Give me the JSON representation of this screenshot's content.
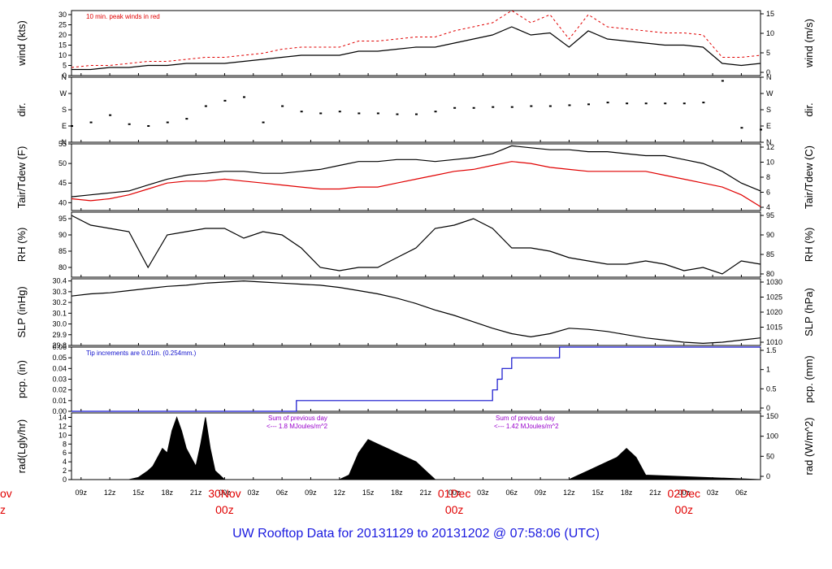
{
  "footer": {
    "prefix": "UW Rooftop Data for",
    "start": "20131129",
    "to_word": "to",
    "end": "20131202",
    "at_word": "@",
    "time": "07:58:06",
    "tz": "(UTC)"
  },
  "x_axis": {
    "hour_ticks": [
      "09z",
      "12z",
      "15z",
      "18z",
      "21z",
      "00z",
      "03z",
      "06z",
      "09z",
      "12z",
      "15z",
      "18z",
      "21z",
      "00z",
      "03z",
      "06z",
      "09z",
      "12z",
      "15z",
      "18z",
      "21z",
      "00z",
      "03z",
      "06z"
    ],
    "day_labels": [
      {
        "date": "30Nov",
        "time": "00z"
      },
      {
        "date": "01Dec",
        "time": "00z"
      },
      {
        "date": "02Dec",
        "time": "00z"
      }
    ],
    "left_partial": {
      "top": "ov",
      "bottom": "z"
    }
  },
  "colors": {
    "series_black": "#000000",
    "series_red": "#e00000",
    "precip": "#1010cc",
    "annotation_purple": "#9900cc",
    "annotation_blue": "#1010cc",
    "footer": "#1a1adf"
  },
  "chart_data": [
    {
      "type": "line",
      "ylabel": "wind (kts)",
      "ylabel_right": "wind (m/s)",
      "yticks": [
        "0",
        "5",
        "10",
        "15",
        "20",
        "25",
        "30"
      ],
      "yticks_right": [
        "0",
        "5",
        "10",
        "15"
      ],
      "ylim": [
        0,
        32
      ],
      "annotation": "10 min. peak winds in red",
      "series": [
        {
          "name": "wind",
          "color": "#000000",
          "x": [
            0,
            2,
            4,
            6,
            8,
            10,
            12,
            14,
            16,
            18,
            20,
            22,
            24,
            26,
            28,
            30,
            32,
            34,
            36,
            38,
            40,
            42,
            44,
            46,
            48,
            50,
            52,
            54,
            56,
            58,
            60,
            62,
            64,
            66,
            68,
            70,
            72
          ],
          "values": [
            3,
            3,
            4,
            4,
            5,
            5,
            6,
            6,
            6,
            7,
            8,
            9,
            10,
            10,
            10,
            12,
            12,
            13,
            14,
            14,
            16,
            18,
            20,
            24,
            20,
            21,
            14,
            22,
            18,
            17,
            16,
            15,
            15,
            14,
            6,
            5,
            6
          ]
        },
        {
          "name": "peak",
          "color": "#e00000",
          "x": [
            0,
            2,
            4,
            6,
            8,
            10,
            12,
            14,
            16,
            18,
            20,
            22,
            24,
            26,
            28,
            30,
            32,
            34,
            36,
            38,
            40,
            42,
            44,
            46,
            48,
            50,
            52,
            54,
            56,
            58,
            60,
            62,
            64,
            66,
            68,
            70,
            72
          ],
          "values": [
            4,
            5,
            5,
            6,
            7,
            7,
            8,
            9,
            9,
            10,
            11,
            13,
            14,
            14,
            14,
            17,
            17,
            18,
            19,
            19,
            22,
            24,
            26,
            32,
            26,
            30,
            18,
            30,
            24,
            23,
            22,
            21,
            21,
            20,
            9,
            9,
            10
          ]
        }
      ]
    },
    {
      "type": "scatter",
      "ylabel": "dir.",
      "ylabel_right": "dir.",
      "yticks": [
        "N",
        "E",
        "S",
        "W",
        "N"
      ],
      "yticks_right": [
        "N",
        "E",
        "S",
        "W",
        "N"
      ],
      "ylim": [
        0,
        360
      ],
      "series": [
        {
          "name": "dir",
          "color": "#000000",
          "x": [
            0,
            2,
            4,
            6,
            8,
            10,
            12,
            14,
            16,
            18,
            20,
            22,
            24,
            26,
            28,
            30,
            32,
            34,
            36,
            38,
            40,
            42,
            44,
            46,
            48,
            50,
            52,
            54,
            56,
            58,
            60,
            62,
            64,
            66,
            68,
            70,
            72
          ],
          "values": [
            90,
            110,
            150,
            100,
            90,
            110,
            130,
            200,
            230,
            250,
            110,
            200,
            170,
            160,
            170,
            160,
            160,
            155,
            155,
            170,
            190,
            190,
            195,
            195,
            200,
            200,
            205,
            210,
            220,
            215,
            215,
            215,
            215,
            220,
            340,
            80,
            70
          ]
        }
      ]
    },
    {
      "type": "line",
      "ylabel": "Tair/Tdew (F)",
      "ylabel_right": "Tair/Tdew (C)",
      "yticks": [
        "40",
        "45",
        "50",
        "55"
      ],
      "yticks_right": [
        "4",
        "6",
        "8",
        "10",
        "12"
      ],
      "ylim": [
        38,
        55
      ],
      "series": [
        {
          "name": "Tair",
          "color": "#000000",
          "x": [
            0,
            2,
            4,
            6,
            8,
            10,
            12,
            14,
            16,
            18,
            20,
            22,
            24,
            26,
            28,
            30,
            32,
            34,
            36,
            38,
            40,
            42,
            44,
            46,
            48,
            50,
            52,
            54,
            56,
            58,
            60,
            62,
            64,
            66,
            68,
            70,
            72
          ],
          "values": [
            41.5,
            42,
            42.5,
            43,
            44.5,
            46,
            47,
            47.5,
            48,
            48,
            47.5,
            47.5,
            48,
            48.5,
            49.5,
            50.5,
            50.5,
            51,
            51,
            50.5,
            51,
            51.5,
            52.5,
            54.5,
            54,
            53.5,
            53.5,
            53,
            53,
            52.5,
            52,
            52,
            51,
            50,
            48,
            45,
            43
          ]
        },
        {
          "name": "Tdew",
          "color": "#e00000",
          "x": [
            0,
            2,
            4,
            6,
            8,
            10,
            12,
            14,
            16,
            18,
            20,
            22,
            24,
            26,
            28,
            30,
            32,
            34,
            36,
            38,
            40,
            42,
            44,
            46,
            48,
            50,
            52,
            54,
            56,
            58,
            60,
            62,
            64,
            66,
            68,
            70,
            72
          ],
          "values": [
            41,
            40.5,
            41,
            42,
            43.5,
            45,
            45.5,
            45.5,
            46,
            45.5,
            45,
            44.5,
            44,
            43.5,
            43.5,
            44,
            44,
            45,
            46,
            47,
            48,
            48.5,
            49.5,
            50.5,
            50,
            49,
            48.5,
            48,
            48,
            48,
            48,
            47,
            46,
            45,
            44,
            42,
            39
          ]
        }
      ]
    },
    {
      "type": "line",
      "ylabel": "RH (%)",
      "ylabel_right": "RH (%)",
      "yticks": [
        "80",
        "85",
        "90",
        "95"
      ],
      "yticks_right": [
        "80",
        "85",
        "90",
        "95"
      ],
      "ylim": [
        77,
        97
      ],
      "series": [
        {
          "name": "RH",
          "color": "#000000",
          "x": [
            0,
            2,
            4,
            6,
            8,
            10,
            12,
            14,
            16,
            18,
            20,
            22,
            24,
            26,
            28,
            30,
            32,
            34,
            36,
            38,
            40,
            42,
            44,
            46,
            48,
            50,
            52,
            54,
            56,
            58,
            60,
            62,
            64,
            66,
            68,
            70,
            72
          ],
          "values": [
            96,
            93,
            92,
            91,
            80,
            90,
            91,
            92,
            92,
            89,
            91,
            90,
            86,
            80,
            79,
            80,
            80,
            83,
            86,
            92,
            93,
            95,
            92,
            86,
            86,
            85,
            83,
            82,
            81,
            81,
            82,
            81,
            79,
            80,
            78,
            82,
            81
          ]
        }
      ]
    },
    {
      "type": "line",
      "ylabel": "SLP (inHg)",
      "ylabel_right": "SLP (hPa)",
      "yticks": [
        "29.8",
        "29.9",
        "30.0",
        "30.1",
        "30.2",
        "30.3",
        "30.4"
      ],
      "yticks_right": [
        "1010",
        "1015",
        "1020",
        "1025",
        "1030"
      ],
      "ylim": [
        29.8,
        30.42
      ],
      "series": [
        {
          "name": "SLP",
          "color": "#000000",
          "x": [
            0,
            2,
            4,
            6,
            8,
            10,
            12,
            14,
            16,
            18,
            20,
            22,
            24,
            26,
            28,
            30,
            32,
            34,
            36,
            38,
            40,
            42,
            44,
            46,
            48,
            50,
            52,
            54,
            56,
            58,
            60,
            62,
            64,
            66,
            68,
            70,
            72
          ],
          "values": [
            30.26,
            30.28,
            30.29,
            30.31,
            30.33,
            30.35,
            30.36,
            30.38,
            30.39,
            30.4,
            30.39,
            30.38,
            30.37,
            30.36,
            30.34,
            30.31,
            30.28,
            30.24,
            30.19,
            30.13,
            30.08,
            30.02,
            29.96,
            29.91,
            29.88,
            29.91,
            29.96,
            29.95,
            29.93,
            29.9,
            29.87,
            29.85,
            29.83,
            29.82,
            29.83,
            29.85,
            29.87
          ]
        }
      ]
    },
    {
      "type": "line",
      "ylabel": "pcp. (in)",
      "ylabel_right": "pcp. (mm)",
      "yticks": [
        "0.00",
        "0.01",
        "0.02",
        "0.03",
        "0.04",
        "0.05",
        "0.06"
      ],
      "yticks_right": [
        "0",
        "0.5",
        "1",
        "1.5"
      ],
      "ylim": [
        0,
        0.06
      ],
      "annotation": "Tip increments are 0.01in. (0.254mm.)",
      "series": [
        {
          "name": "pcp",
          "color": "#1010cc",
          "x": [
            0,
            23.5,
            23.5,
            44,
            44,
            44.5,
            44.5,
            45,
            45,
            46,
            46,
            49,
            49,
            51,
            51,
            72
          ],
          "values": [
            0,
            0,
            0.01,
            0.01,
            0.02,
            0.02,
            0.03,
            0.03,
            0.04,
            0.04,
            0.05,
            0.05,
            0.05,
            0.05,
            0.06,
            0.06
          ]
        }
      ]
    },
    {
      "type": "area",
      "ylabel": "rad(Lgly/hr)",
      "ylabel_right": "rad (W/m^2)",
      "yticks": [
        "0",
        "2",
        "4",
        "6",
        "8",
        "10",
        "12",
        "14"
      ],
      "yticks_right": [
        "0",
        "50",
        "100",
        "150"
      ],
      "ylim": [
        0,
        15
      ],
      "annotations": [
        {
          "text": "Sum of previous day",
          "line2": "<--- 1.8 MJoules/m^2"
        },
        {
          "text": "Sum of previous day",
          "line2": "<--- 1.42 MJoules/m^2"
        }
      ],
      "series": [
        {
          "name": "rad",
          "color": "#000000",
          "x": [
            0,
            6,
            7,
            8,
            8.5,
            9,
            9.5,
            10,
            10.5,
            11,
            11.5,
            12,
            12.5,
            13,
            13.5,
            14,
            14.5,
            15,
            16,
            28,
            29,
            30,
            31,
            32,
            33,
            34,
            35,
            36,
            37,
            38,
            51,
            52,
            53,
            54,
            55,
            56,
            57,
            58,
            59,
            60,
            72
          ],
          "values": [
            0,
            0,
            0.5,
            2,
            3,
            5,
            7,
            6,
            11,
            14,
            11,
            7,
            5,
            3,
            8,
            14,
            7,
            2,
            0,
            0,
            1,
            6,
            9,
            8,
            7,
            6,
            5,
            4,
            2,
            0,
            0,
            0,
            1,
            2,
            3,
            4,
            5,
            7,
            5,
            1,
            0
          ]
        }
      ]
    }
  ]
}
